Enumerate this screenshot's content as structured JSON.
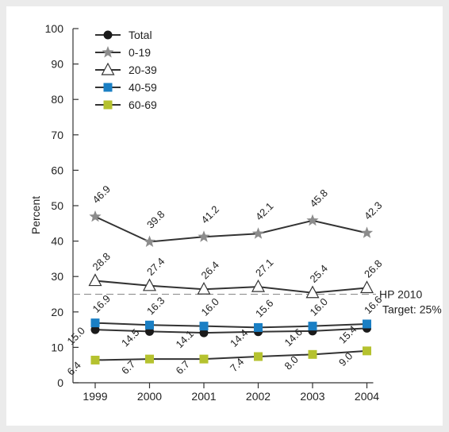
{
  "chart_data": {
    "type": "line",
    "x": [
      "1999",
      "2000",
      "2001",
      "2002",
      "2003",
      "2004"
    ],
    "ylabel": "Percent",
    "ylim": [
      0,
      100
    ],
    "yticks": [
      0,
      10,
      20,
      30,
      40,
      50,
      60,
      70,
      80,
      90,
      100
    ],
    "grid": false,
    "legend_position": "top-left",
    "series": [
      {
        "name": "Total",
        "marker": "circle",
        "color": "#1a1a1a",
        "values": [
          15.0,
          14.5,
          14.1,
          14.4,
          14.6,
          15.4
        ]
      },
      {
        "name": "0-19",
        "marker": "star",
        "color": "#8c8c8c",
        "values": [
          46.9,
          39.8,
          41.2,
          42.1,
          45.8,
          42.3
        ]
      },
      {
        "name": "20-39",
        "marker": "triangle",
        "color": "#ffffff",
        "values": [
          28.8,
          27.4,
          26.4,
          27.1,
          25.4,
          26.8
        ]
      },
      {
        "name": "40-59",
        "marker": "square",
        "color": "#1a7fc4",
        "values": [
          16.9,
          16.3,
          16.0,
          15.6,
          16.0,
          16.6
        ]
      },
      {
        "name": "60-69",
        "marker": "square",
        "color": "#b5c22f",
        "values": [
          6.4,
          6.7,
          6.7,
          7.4,
          8.0,
          9.0
        ]
      }
    ],
    "reference_line": {
      "value": 25,
      "label_line1": "HP 2010",
      "label_line2": "Target: 25%"
    }
  }
}
